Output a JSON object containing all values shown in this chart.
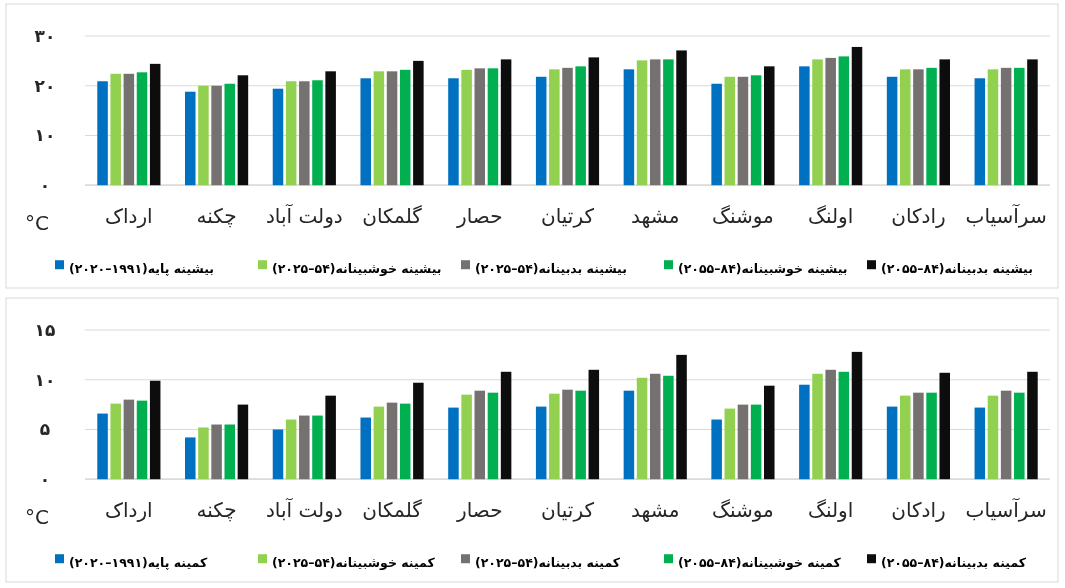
{
  "chart_data": [
    {
      "type": "bar",
      "ylabel": "°C",
      "ylim": [
        0,
        30
      ],
      "yticks": [
        {
          "value": 0,
          "label": "۰"
        },
        {
          "value": 10,
          "label": "۱۰"
        },
        {
          "value": 20,
          "label": "۲۰"
        },
        {
          "value": 30,
          "label": "۳۰"
        }
      ],
      "grid": "y",
      "legend": "bottom",
      "categories": [
        "ارداک",
        "چکنه",
        "دولت آباد",
        "گلمکان",
        "حصار",
        "کرتیان",
        "مشهد",
        "موشنگ",
        "اولنگ",
        "رادکان",
        "سرآسیاب"
      ],
      "series": [
        {
          "name": "بیشینه پایه(۱۹۹۱–۲۰۲۰)",
          "color": "#0070c0",
          "values": [
            20.9,
            18.8,
            19.4,
            21.5,
            21.5,
            21.8,
            23.3,
            20.4,
            23.9,
            21.8,
            21.5
          ]
        },
        {
          "name": "بیشینه خوشبینانه(۵۴–۲۰۲۵)",
          "color": "#92d050",
          "values": [
            22.4,
            20.0,
            20.9,
            22.9,
            23.2,
            23.3,
            25.1,
            21.8,
            25.3,
            23.3,
            23.3
          ]
        },
        {
          "name": "بیشینه بدبینانه(۵۴–۲۰۲۵)",
          "color": "#767171",
          "values": [
            22.4,
            20.0,
            20.9,
            22.9,
            23.5,
            23.6,
            25.3,
            21.8,
            25.6,
            23.3,
            23.6
          ]
        },
        {
          "name": "بیشینه خوشبینانه(۸۴–۲۰۵۵)",
          "color": "#00b050",
          "values": [
            22.7,
            20.4,
            21.1,
            23.2,
            23.5,
            23.9,
            25.3,
            22.1,
            25.9,
            23.6,
            23.6
          ]
        },
        {
          "name": "بیشینه بدبینانه(۸۴–۲۰۵۵)",
          "color": "#0d0d0d",
          "values": [
            24.4,
            22.1,
            22.9,
            25.0,
            25.3,
            25.7,
            27.1,
            23.9,
            27.8,
            25.3,
            25.3
          ]
        }
      ]
    },
    {
      "type": "bar",
      "ylabel": "°C",
      "ylim": [
        0,
        15
      ],
      "yticks": [
        {
          "value": 0,
          "label": "۰"
        },
        {
          "value": 5,
          "label": "۵"
        },
        {
          "value": 10,
          "label": "۱۰"
        },
        {
          "value": 15,
          "label": "۱۵"
        }
      ],
      "grid": "y",
      "legend": "bottom",
      "categories": [
        "ارداک",
        "چکنه",
        "دولت آباد",
        "گلمکان",
        "حصار",
        "کرتیان",
        "مشهد",
        "موشنگ",
        "اولنگ",
        "رادکان",
        "سرآسیاب"
      ],
      "series": [
        {
          "name": "کمینه پایه(۱۹۹۱–۲۰۲۰)",
          "color": "#0070c0",
          "values": [
            6.6,
            4.2,
            5.0,
            6.2,
            7.2,
            7.3,
            8.9,
            6.0,
            9.5,
            7.3,
            7.2
          ]
        },
        {
          "name": "کمینه خوشبینانه(۵۴–۲۰۲۵)",
          "color": "#92d050",
          "values": [
            7.6,
            5.2,
            6.0,
            7.3,
            8.5,
            8.6,
            10.2,
            7.1,
            10.6,
            8.4,
            8.4
          ]
        },
        {
          "name": "کمینه بدبینانه(۵۴–۲۰۲۵)",
          "color": "#767171",
          "values": [
            8.0,
            5.5,
            6.4,
            7.7,
            8.9,
            9.0,
            10.6,
            7.5,
            11.0,
            8.7,
            8.9
          ]
        },
        {
          "name": "کمینه خوشبینانه(۸۴–۲۰۵۵)",
          "color": "#00b050",
          "values": [
            7.9,
            5.5,
            6.4,
            7.6,
            8.7,
            8.9,
            10.4,
            7.5,
            10.8,
            8.7,
            8.7
          ]
        },
        {
          "name": "کمینه بدبینانه(۸۴–۲۰۵۵)",
          "color": "#0d0d0d",
          "values": [
            9.9,
            7.5,
            8.4,
            9.7,
            10.8,
            11.0,
            12.5,
            9.4,
            12.8,
            10.7,
            10.8
          ]
        }
      ]
    }
  ]
}
